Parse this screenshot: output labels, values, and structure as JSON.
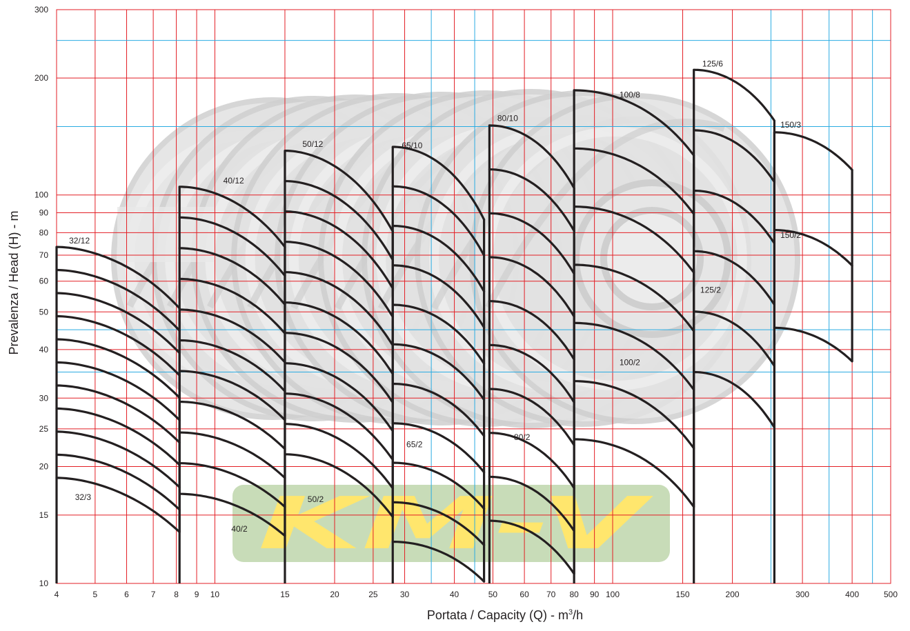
{
  "chart_data": {
    "type": "line",
    "title": "",
    "xlabel": "Portata / Capacity (Q) - m",
    "xlabel_sup": "3",
    "xlabel_suffix": "/h",
    "ylabel": "Prevalenza / Head (H) - m",
    "xscale": "log",
    "yscale": "log",
    "xlim": [
      4,
      500
    ],
    "ylim": [
      10,
      300
    ],
    "grid": true,
    "colors": {
      "grid_major": "#e31e24",
      "grid_minor": "#29abe2",
      "curve": "#231f20",
      "watermark": "#cfcfcf",
      "logo_bg": "#c8dcb8",
      "logo_text": "#ffe66d"
    },
    "x_ticks": [
      4,
      5,
      6,
      7,
      8,
      9,
      10,
      15,
      20,
      25,
      30,
      40,
      50,
      60,
      70,
      80,
      90,
      100,
      150,
      200,
      300,
      400,
      500
    ],
    "x_minor_gridlines": [
      35,
      45,
      250,
      350,
      450
    ],
    "y_ticks": [
      10,
      15,
      20,
      25,
      30,
      40,
      50,
      60,
      70,
      80,
      90,
      100,
      200,
      300
    ],
    "y_minor_gridlines": [
      35,
      45,
      150,
      250
    ],
    "watermark_logo": "KM-V",
    "bands": [
      {
        "q0": 4,
        "q1": 8.15,
        "h_top": 73.5,
        "h_bot": 18.7,
        "n": 11,
        "r_top": 0.695,
        "r_bot": 0.725,
        "k": 1.8
      },
      {
        "q0": 8.15,
        "q1": 15,
        "h_top": 105,
        "h_bot": 17,
        "n": 11,
        "r_top": 0.7,
        "r_bot": 0.78,
        "k": 1.9
      },
      {
        "q0": 15,
        "q1": 28,
        "h_top": 130,
        "h_bot": 21.5,
        "n": 11,
        "r_top": 0.62,
        "r_bot": 0.69,
        "k": 1.9
      },
      {
        "q0": 28,
        "q1": 47.5,
        "h_top": 133,
        "h_bot": 12.8,
        "n": 11,
        "r_top": 0.65,
        "r_bot": 0.79,
        "k": 2.0
      },
      {
        "q0": 49,
        "q1": 80,
        "h_top": 151,
        "h_bot": 14.5,
        "n": 10,
        "r_top": 0.69,
        "r_bot": 0.73,
        "k": 2.0
      },
      {
        "q0": 80,
        "q1": 160,
        "h_top": 186,
        "h_bot": 23.5,
        "n": 7,
        "r_top": 0.68,
        "r_bot": 0.67,
        "k": 2.0
      },
      {
        "q0": 160,
        "q1": 255,
        "h_top": 210,
        "h_bot": 35,
        "n": 6,
        "r_top": 0.74,
        "r_bot": 0.72,
        "k": 2.0
      },
      {
        "q0": 255,
        "q1": 400,
        "h_top": 145,
        "h_bot": 45.5,
        "n": 3,
        "r_top": 0.8,
        "r_bot": 0.82,
        "k": 2.0
      }
    ],
    "labels": [
      {
        "text": "32/12",
        "q": 4.3,
        "h": 75
      },
      {
        "text": "32/3",
        "q": 4.45,
        "h": 16.4
      },
      {
        "text": "40/12",
        "q": 10.5,
        "h": 107
      },
      {
        "text": "40/2",
        "q": 11.0,
        "h": 13.6
      },
      {
        "text": "50/12",
        "q": 16.6,
        "h": 133
      },
      {
        "text": "50/2",
        "q": 17.1,
        "h": 16.2
      },
      {
        "text": "65/10",
        "q": 29.5,
        "h": 132
      },
      {
        "text": "65/2",
        "q": 30.3,
        "h": 22.4
      },
      {
        "text": "80/10",
        "q": 51.3,
        "h": 155
      },
      {
        "text": "80/2",
        "q": 56.5,
        "h": 23.4
      },
      {
        "text": "100/8",
        "q": 104,
        "h": 178
      },
      {
        "text": "100/2",
        "q": 104,
        "h": 36.5
      },
      {
        "text": "125/6",
        "q": 168,
        "h": 214
      },
      {
        "text": "125/2",
        "q": 166,
        "h": 56
      },
      {
        "text": "150/3",
        "q": 264,
        "h": 149
      },
      {
        "text": "150/2",
        "q": 264,
        "h": 77.5
      }
    ]
  }
}
